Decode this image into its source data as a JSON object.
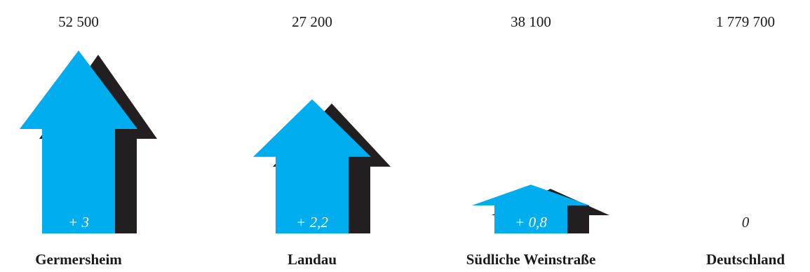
{
  "chart_data": {
    "type": "bar",
    "categories": [
      "Germersheim",
      "Landau",
      "Südliche Weinstraße",
      "Deutschland"
    ],
    "series": [
      {
        "values": [
          3,
          2.2,
          0.8,
          0
        ],
        "labels": [
          "+ 3",
          "+ 2,2",
          "+ 0,8",
          "0"
        ]
      }
    ],
    "annotations": [
      "52 500",
      "27 200",
      "38 100",
      "1 779 700"
    ],
    "title": "",
    "xlabel": "",
    "ylabel": "",
    "ylim": [
      0,
      3
    ]
  },
  "colors": {
    "arrow": "#00aeef",
    "shadow": "#231f20",
    "background": "#ffffff"
  }
}
